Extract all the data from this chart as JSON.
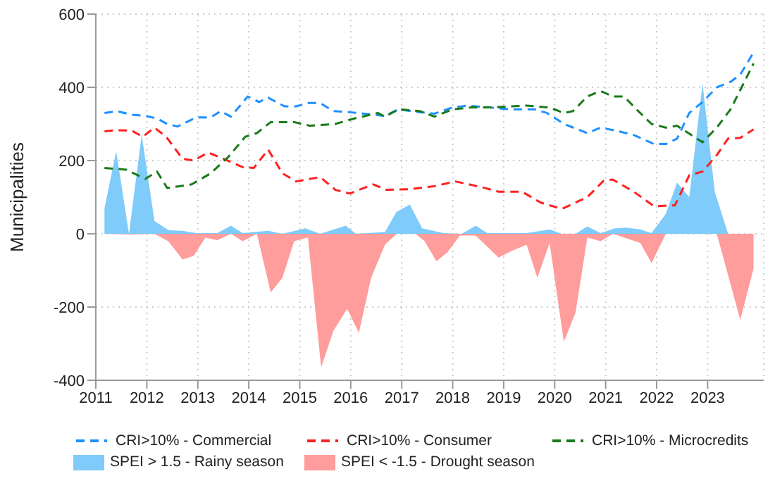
{
  "chart_data": {
    "type": "line",
    "ylabel": "Municipalities",
    "xlim": [
      2011,
      2024.1
    ],
    "xticks": [
      2011,
      2012,
      2013,
      2014,
      2015,
      2016,
      2017,
      2018,
      2019,
      2020,
      2021,
      2022,
      2023
    ],
    "ylim": [
      -400,
      600
    ],
    "yticks": [
      -400,
      -200,
      0,
      200,
      400,
      600
    ],
    "grid": true,
    "legend": "bottom",
    "line_style": "dashed",
    "series": [
      {
        "name": "SPEI > 1.5 - Rainy season",
        "type": "area",
        "color": "#7fcbfa",
        "x": [
          2011.17,
          2011.4,
          2011.65,
          2011.9,
          2012.15,
          2012.42,
          2012.7,
          2012.97,
          2013.38,
          2013.65,
          2013.88,
          2014.38,
          2014.66,
          2015.11,
          2015.4,
          2015.9,
          2016.1,
          2016.67,
          2016.9,
          2017.16,
          2017.4,
          2017.82,
          2018.18,
          2018.45,
          2018.68,
          2019.45,
          2019.9,
          2020.14,
          2020.41,
          2020.64,
          2020.9,
          2021.18,
          2021.4,
          2021.68,
          2021.9,
          2022.18,
          2022.4,
          2022.64,
          2022.9,
          2023.14,
          2023.4,
          2023.9
        ],
        "values": [
          70,
          225,
          0,
          270,
          35,
          10,
          8,
          2,
          2,
          22,
          2,
          8,
          0,
          15,
          0,
          22,
          0,
          5,
          60,
          80,
          15,
          2,
          0,
          22,
          2,
          2,
          12,
          0,
          0,
          20,
          2,
          15,
          17,
          12,
          2,
          55,
          140,
          100,
          410,
          115,
          0,
          0
        ]
      },
      {
        "name": "SPEI < -1.5 - Drought season",
        "type": "area",
        "color": "#ff9c9c",
        "x": [
          2011.17,
          2011.65,
          2012.15,
          2012.42,
          2012.7,
          2012.92,
          2013.15,
          2013.38,
          2013.65,
          2013.88,
          2014.16,
          2014.43,
          2014.66,
          2014.89,
          2015.16,
          2015.42,
          2015.66,
          2015.93,
          2016.16,
          2016.4,
          2016.67,
          2016.9,
          2017.27,
          2017.45,
          2017.68,
          2017.9,
          2018.14,
          2018.45,
          2018.9,
          2019.18,
          2019.45,
          2019.66,
          2019.9,
          2020.18,
          2020.41,
          2020.64,
          2020.9,
          2021.14,
          2021.68,
          2021.9,
          2022.18,
          2023.18,
          2023.64,
          2023.9
        ],
        "values": [
          0,
          -2,
          0,
          -20,
          -70,
          -60,
          -10,
          -18,
          0,
          -20,
          0,
          -160,
          -120,
          -20,
          -10,
          -365,
          -265,
          -205,
          -270,
          -120,
          -30,
          0,
          0,
          -20,
          -75,
          -50,
          -5,
          -5,
          -65,
          -45,
          -30,
          -120,
          -25,
          -295,
          -215,
          -10,
          -20,
          0,
          -25,
          -80,
          0,
          0,
          -235,
          -95
        ]
      },
      {
        "name": "CRI>10% - Commercial",
        "color": "#1e90ff",
        "x": [
          2011.17,
          2011.42,
          2011.7,
          2011.97,
          2012.2,
          2012.4,
          2012.6,
          2012.97,
          2013.25,
          2013.45,
          2013.65,
          2013.98,
          2014.2,
          2014.38,
          2014.7,
          2014.93,
          2015.16,
          2015.4,
          2015.66,
          2015.9,
          2016.26,
          2016.67,
          2016.94,
          2017.18,
          2017.64,
          2018.0,
          2018.3,
          2018.73,
          2019.1,
          2019.6,
          2019.85,
          2020.18,
          2020.64,
          2020.9,
          2021.18,
          2021.55,
          2021.95,
          2022.18,
          2022.4,
          2022.64,
          2022.9,
          2023.18,
          2023.45,
          2023.64,
          2023.9
        ],
        "values": [
          330,
          335,
          325,
          322,
          315,
          300,
          293,
          318,
          318,
          335,
          320,
          375,
          360,
          372,
          348,
          348,
          357,
          357,
          335,
          333,
          328,
          322,
          340,
          335,
          328,
          345,
          350,
          345,
          340,
          340,
          330,
          300,
          275,
          290,
          282,
          270,
          245,
          245,
          260,
          330,
          360,
          400,
          415,
          435,
          495
        ]
      },
      {
        "name": "CRI>10% - Consumer",
        "color": "#ff2020",
        "x": [
          2011.17,
          2011.42,
          2011.7,
          2011.92,
          2012.15,
          2012.38,
          2012.7,
          2012.92,
          2013.2,
          2013.5,
          2013.88,
          2014.1,
          2014.38,
          2014.66,
          2014.93,
          2015.4,
          2015.7,
          2015.98,
          2016.44,
          2016.7,
          2017.18,
          2017.64,
          2018.05,
          2018.55,
          2018.9,
          2019.36,
          2019.73,
          2020.14,
          2020.64,
          2020.96,
          2021.14,
          2021.55,
          2021.95,
          2022.36,
          2022.64,
          2022.9,
          2023.18,
          2023.4,
          2023.64,
          2023.9
        ],
        "values": [
          280,
          283,
          282,
          265,
          290,
          265,
          205,
          200,
          222,
          205,
          182,
          180,
          230,
          165,
          143,
          155,
          120,
          110,
          135,
          120,
          122,
          130,
          143,
          128,
          115,
          115,
          85,
          68,
          100,
          145,
          148,
          115,
          75,
          78,
          160,
          170,
          215,
          260,
          262,
          285
        ]
      },
      {
        "name": "CRI>10% - Microcredits",
        "color": "#1a7a1a",
        "x": [
          2011.17,
          2011.6,
          2011.97,
          2012.2,
          2012.4,
          2012.88,
          2013.25,
          2013.6,
          2013.93,
          2014.16,
          2014.43,
          2014.89,
          2015.2,
          2015.7,
          2016.07,
          2016.53,
          2016.67,
          2016.94,
          2017.36,
          2017.64,
          2018.0,
          2018.36,
          2018.73,
          2019.45,
          2019.9,
          2020.18,
          2020.36,
          2020.64,
          2020.9,
          2021.14,
          2021.36,
          2021.64,
          2021.9,
          2022.18,
          2022.4,
          2022.9,
          2023.18,
          2023.45,
          2023.9
        ],
        "values": [
          180,
          175,
          150,
          170,
          125,
          135,
          165,
          210,
          265,
          275,
          305,
          305,
          295,
          300,
          315,
          330,
          320,
          340,
          335,
          320,
          340,
          345,
          345,
          350,
          345,
          330,
          335,
          375,
          390,
          375,
          375,
          335,
          300,
          290,
          295,
          250,
          290,
          340,
          465
        ]
      }
    ]
  }
}
